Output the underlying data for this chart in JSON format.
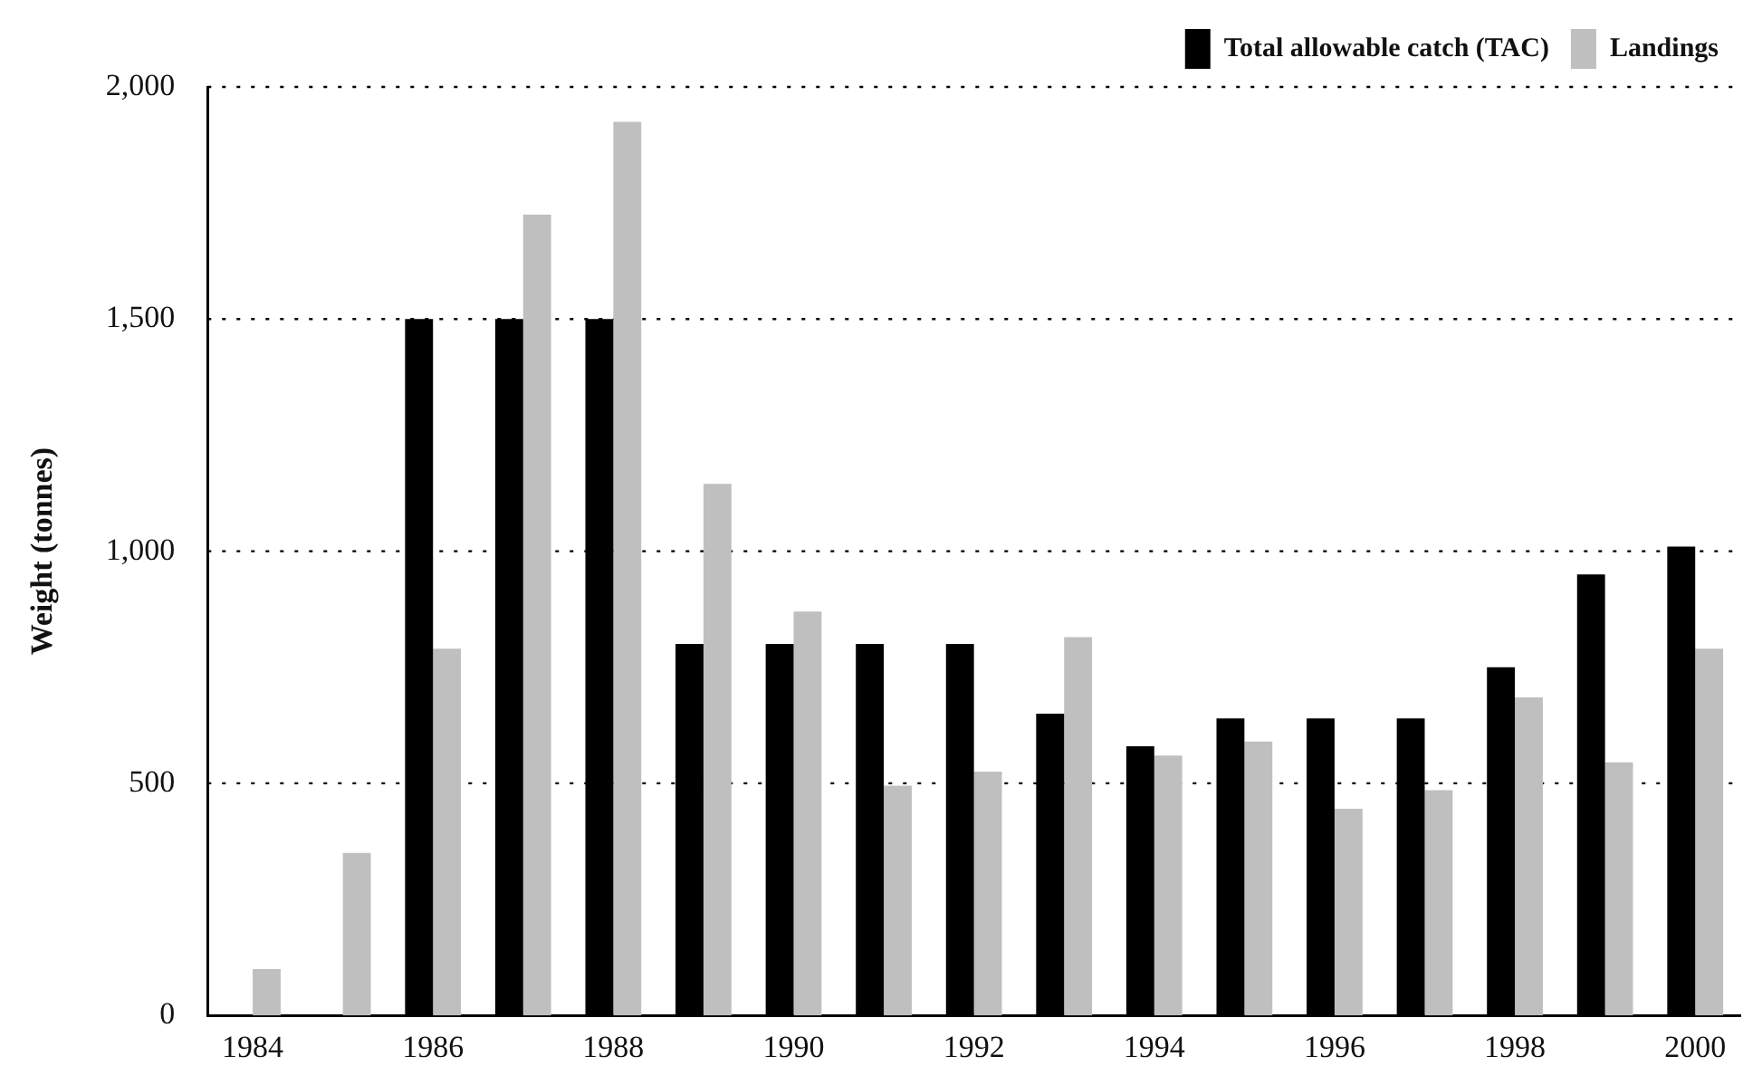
{
  "chart_data": {
    "type": "bar",
    "ylabel": "Weight (tonnes)",
    "categories": [
      "1984",
      null,
      "1986",
      null,
      "1988",
      null,
      "1990",
      null,
      "1992",
      null,
      "1994",
      null,
      "1996",
      null,
      "1998",
      null,
      "2000"
    ],
    "series": [
      {
        "name": "Total allowable catch (TAC)",
        "color": "#000000",
        "values": [
          null,
          null,
          1500,
          1500,
          1500,
          800,
          800,
          800,
          800,
          650,
          580,
          640,
          640,
          640,
          750,
          950,
          1010
        ]
      },
      {
        "name": "Landings",
        "color": "#bfbfbf",
        "values": [
          100,
          350,
          790,
          1725,
          1925,
          1145,
          870,
          495,
          525,
          815,
          560,
          590,
          445,
          485,
          685,
          545,
          790
        ]
      }
    ],
    "ylim": [
      0,
      2000
    ],
    "yticks": [
      0,
      500,
      {
        "value": 1000,
        "label": "1,000"
      },
      {
        "value": 1500,
        "label": "1,500"
      },
      {
        "value": 2000,
        "label": "2,000"
      }
    ],
    "grid": "y",
    "legend": "top right"
  }
}
